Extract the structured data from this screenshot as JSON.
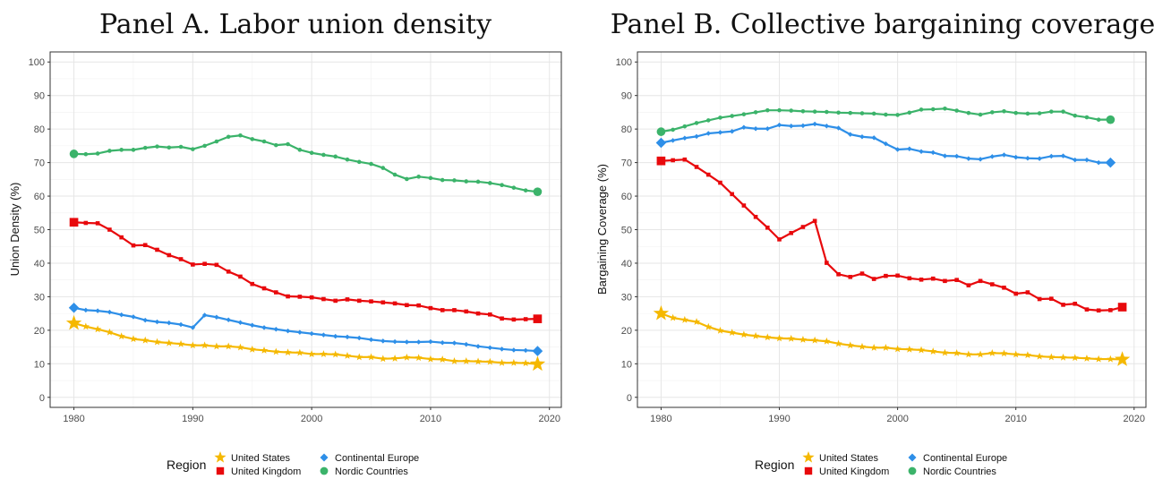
{
  "chart_data": [
    {
      "type": "line",
      "title": "Panel A. Labor union density",
      "xlabel": "",
      "ylabel": "Union Density (%)",
      "xlim": [
        1978,
        2021
      ],
      "ylim": [
        -3,
        103
      ],
      "xticks": [
        1980,
        1990,
        2000,
        2010,
        2020
      ],
      "yticks": [
        0,
        10,
        20,
        30,
        40,
        50,
        60,
        70,
        80,
        90,
        100
      ],
      "grid": true,
      "legend_title": "Region",
      "legend_position": "bottom",
      "series": [
        {
          "name": "United States",
          "color": "#F5B800",
          "marker": "star",
          "x": [
            1980,
            1981,
            1982,
            1983,
            1984,
            1985,
            1986,
            1987,
            1988,
            1989,
            1990,
            1991,
            1992,
            1993,
            1994,
            1995,
            1996,
            1997,
            1998,
            1999,
            2000,
            2001,
            2002,
            2003,
            2004,
            2005,
            2006,
            2007,
            2008,
            2009,
            2010,
            2011,
            2012,
            2013,
            2014,
            2015,
            2016,
            2017,
            2018,
            2019
          ],
          "values": [
            22.1,
            21.1,
            20.3,
            19.4,
            18.2,
            17.4,
            17.0,
            16.5,
            16.2,
            15.9,
            15.5,
            15.5,
            15.2,
            15.2,
            14.9,
            14.3,
            14.0,
            13.6,
            13.4,
            13.3,
            12.9,
            12.9,
            12.8,
            12.4,
            12.0,
            12.0,
            11.5,
            11.6,
            11.9,
            11.8,
            11.4,
            11.3,
            10.8,
            10.8,
            10.7,
            10.6,
            10.3,
            10.3,
            10.2,
            9.9
          ]
        },
        {
          "name": "United Kingdom",
          "color": "#E8090C",
          "marker": "square",
          "x": [
            1980,
            1981,
            1982,
            1983,
            1984,
            1985,
            1986,
            1987,
            1988,
            1989,
            1990,
            1991,
            1992,
            1993,
            1994,
            1995,
            1996,
            1997,
            1998,
            1999,
            2000,
            2001,
            2002,
            2003,
            2004,
            2005,
            2006,
            2007,
            2008,
            2009,
            2010,
            2011,
            2012,
            2013,
            2014,
            2015,
            2016,
            2017,
            2018,
            2019
          ],
          "values": [
            52.2,
            52.0,
            51.9,
            50.0,
            47.7,
            45.3,
            45.4,
            44.0,
            42.4,
            41.2,
            39.6,
            39.8,
            39.5,
            37.5,
            36.0,
            33.8,
            32.5,
            31.3,
            30.1,
            30.0,
            29.8,
            29.3,
            28.8,
            29.2,
            28.8,
            28.6,
            28.3,
            28.0,
            27.5,
            27.4,
            26.6,
            26.0,
            26.0,
            25.6,
            25.0,
            24.7,
            23.5,
            23.2,
            23.3,
            23.4
          ]
        },
        {
          "name": "Continental Europe",
          "color": "#2E8FE8",
          "marker": "diamond",
          "x": [
            1980,
            1981,
            1982,
            1983,
            1984,
            1985,
            1986,
            1987,
            1988,
            1989,
            1990,
            1991,
            1992,
            1993,
            1994,
            1995,
            1996,
            1997,
            1998,
            1999,
            2000,
            2001,
            2002,
            2003,
            2004,
            2005,
            2006,
            2007,
            2008,
            2009,
            2010,
            2011,
            2012,
            2013,
            2014,
            2015,
            2016,
            2017,
            2018,
            2019
          ],
          "values": [
            26.7,
            26.0,
            25.8,
            25.4,
            24.6,
            24.0,
            23.0,
            22.5,
            22.2,
            21.7,
            20.8,
            24.5,
            23.9,
            23.1,
            22.3,
            21.5,
            20.8,
            20.3,
            19.8,
            19.4,
            19.0,
            18.6,
            18.2,
            18.0,
            17.7,
            17.2,
            16.8,
            16.6,
            16.5,
            16.5,
            16.6,
            16.3,
            16.2,
            15.8,
            15.2,
            14.8,
            14.4,
            14.1,
            14.0,
            13.8
          ]
        },
        {
          "name": "Nordic Countries",
          "color": "#3BB36A",
          "marker": "circle",
          "x": [
            1980,
            1981,
            1982,
            1983,
            1984,
            1985,
            1986,
            1987,
            1988,
            1989,
            1990,
            1991,
            1992,
            1993,
            1994,
            1995,
            1996,
            1997,
            1998,
            1999,
            2000,
            2001,
            2002,
            2003,
            2004,
            2005,
            2006,
            2007,
            2008,
            2009,
            2010,
            2011,
            2012,
            2013,
            2014,
            2015,
            2016,
            2017,
            2018,
            2019
          ],
          "values": [
            72.6,
            72.5,
            72.7,
            73.5,
            73.8,
            73.8,
            74.4,
            74.8,
            74.5,
            74.7,
            74.0,
            75.0,
            76.3,
            77.7,
            78.1,
            77.0,
            76.3,
            75.2,
            75.5,
            73.8,
            72.9,
            72.3,
            71.8,
            70.9,
            70.2,
            69.6,
            68.4,
            66.4,
            65.1,
            65.8,
            65.4,
            64.8,
            64.7,
            64.4,
            64.3,
            63.9,
            63.3,
            62.5,
            61.7,
            61.3
          ]
        }
      ]
    },
    {
      "type": "line",
      "title": "Panel B. Collective bargaining coverage",
      "xlabel": "",
      "ylabel": "Bargaining Coverage (%)",
      "xlim": [
        1978,
        2021
      ],
      "ylim": [
        -3,
        103
      ],
      "xticks": [
        1980,
        1990,
        2000,
        2010,
        2020
      ],
      "yticks": [
        0,
        10,
        20,
        30,
        40,
        50,
        60,
        70,
        80,
        90,
        100
      ],
      "grid": true,
      "legend_title": "Region",
      "legend_position": "bottom",
      "series": [
        {
          "name": "United States",
          "color": "#F5B800",
          "marker": "star",
          "x": [
            1980,
            1981,
            1982,
            1983,
            1984,
            1985,
            1986,
            1987,
            1988,
            1989,
            1990,
            1991,
            1992,
            1993,
            1994,
            1995,
            1996,
            1997,
            1998,
            1999,
            2000,
            2001,
            2002,
            2003,
            2004,
            2005,
            2006,
            2007,
            2008,
            2009,
            2010,
            2011,
            2012,
            2013,
            2014,
            2015,
            2016,
            2017,
            2018,
            2019
          ],
          "values": [
            25.0,
            23.7,
            23.1,
            22.5,
            21.0,
            19.9,
            19.3,
            18.7,
            18.3,
            17.9,
            17.6,
            17.5,
            17.2,
            17.0,
            16.7,
            16.0,
            15.5,
            15.1,
            14.8,
            14.8,
            14.4,
            14.3,
            14.1,
            13.7,
            13.3,
            13.2,
            12.8,
            12.8,
            13.2,
            13.1,
            12.8,
            12.6,
            12.2,
            12.0,
            11.9,
            11.8,
            11.6,
            11.4,
            11.4,
            11.3
          ]
        },
        {
          "name": "United Kingdom",
          "color": "#E8090C",
          "marker": "square",
          "x": [
            1980,
            1981,
            1982,
            1983,
            1984,
            1985,
            1986,
            1987,
            1988,
            1989,
            1990,
            1991,
            1992,
            1993,
            1994,
            1995,
            1996,
            1997,
            1998,
            1999,
            2000,
            2001,
            2002,
            2003,
            2004,
            2005,
            2006,
            2007,
            2008,
            2009,
            2010,
            2011,
            2012,
            2013,
            2014,
            2015,
            2016,
            2017,
            2018,
            2019
          ],
          "values": [
            70.5,
            70.7,
            70.9,
            68.7,
            66.4,
            64.0,
            60.6,
            57.2,
            53.8,
            50.6,
            47.1,
            49.0,
            50.8,
            52.6,
            40.1,
            36.7,
            35.9,
            36.9,
            35.3,
            36.2,
            36.3,
            35.5,
            35.1,
            35.4,
            34.7,
            35.0,
            33.4,
            34.7,
            33.7,
            32.7,
            30.9,
            31.3,
            29.3,
            29.4,
            27.6,
            27.9,
            26.2,
            25.9,
            26.0,
            26.9
          ]
        },
        {
          "name": "Continental Europe",
          "color": "#2E8FE8",
          "marker": "diamond",
          "x": [
            1980,
            1981,
            1982,
            1983,
            1984,
            1985,
            1986,
            1987,
            1988,
            1989,
            1990,
            1991,
            1992,
            1993,
            1994,
            1995,
            1996,
            1997,
            1998,
            1999,
            2000,
            2001,
            2002,
            2003,
            2004,
            2005,
            2006,
            2007,
            2008,
            2009,
            2010,
            2011,
            2012,
            2013,
            2014,
            2015,
            2016,
            2017,
            2018
          ],
          "values": [
            75.9,
            76.6,
            77.3,
            77.8,
            78.7,
            79.0,
            79.3,
            80.5,
            80.1,
            80.1,
            81.2,
            80.9,
            81.0,
            81.5,
            80.9,
            80.3,
            78.4,
            77.7,
            77.4,
            75.6,
            73.9,
            74.1,
            73.3,
            73.0,
            72.0,
            71.9,
            71.2,
            71.0,
            71.8,
            72.3,
            71.6,
            71.3,
            71.2,
            71.9,
            72.0,
            70.8,
            70.8,
            70.0,
            70.0
          ]
        },
        {
          "name": "Nordic Countries",
          "color": "#3BB36A",
          "marker": "circle",
          "x": [
            1980,
            1981,
            1982,
            1983,
            1984,
            1985,
            1986,
            1987,
            1988,
            1989,
            1990,
            1991,
            1992,
            1993,
            1994,
            1995,
            1996,
            1997,
            1998,
            1999,
            2000,
            2001,
            2002,
            2003,
            2004,
            2005,
            2006,
            2007,
            2008,
            2009,
            2010,
            2011,
            2012,
            2013,
            2014,
            2015,
            2016,
            2017,
            2018
          ],
          "values": [
            79.2,
            79.8,
            80.8,
            81.8,
            82.6,
            83.4,
            83.9,
            84.4,
            85.0,
            85.6,
            85.6,
            85.5,
            85.3,
            85.2,
            85.1,
            84.9,
            84.8,
            84.7,
            84.6,
            84.3,
            84.2,
            84.9,
            85.8,
            85.9,
            86.1,
            85.5,
            84.8,
            84.3,
            85.0,
            85.3,
            84.8,
            84.6,
            84.7,
            85.2,
            85.2,
            84.0,
            83.5,
            82.8,
            82.8
          ]
        }
      ]
    }
  ]
}
